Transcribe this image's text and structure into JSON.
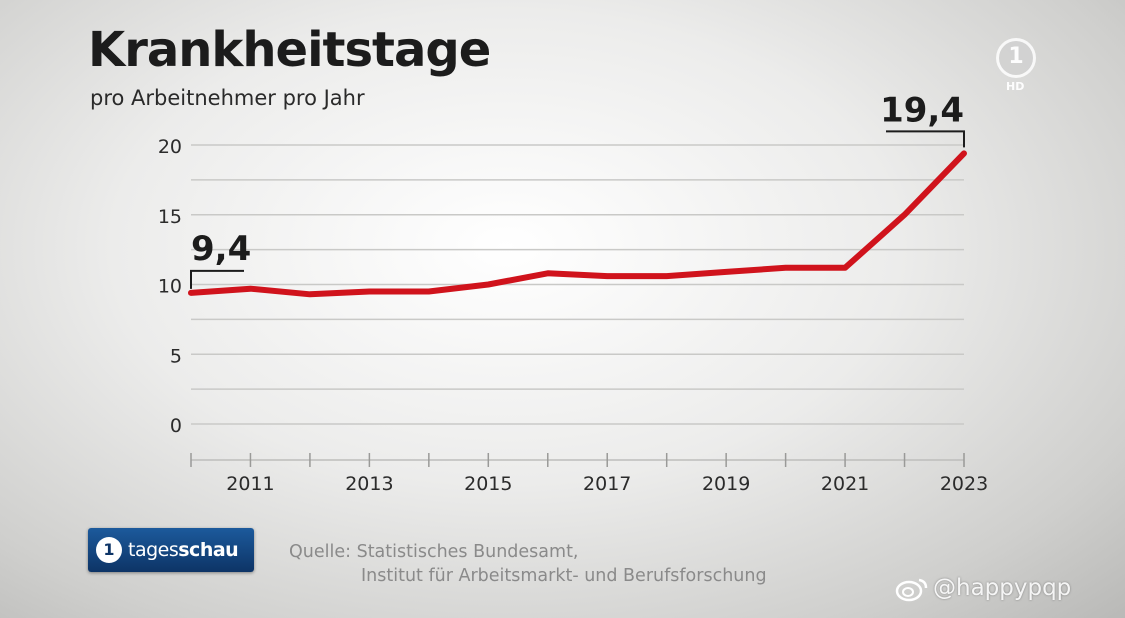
{
  "chart_data": {
    "type": "line",
    "title": "Krankheitstage",
    "subtitle": "pro Arbeitnehmer pro Jahr",
    "x": [
      2010,
      2011,
      2012,
      2013,
      2014,
      2015,
      2016,
      2017,
      2018,
      2019,
      2020,
      2021,
      2022,
      2023
    ],
    "xticks": [
      2011,
      2013,
      2015,
      2017,
      2019,
      2021,
      2023
    ],
    "yticks": [
      0,
      5,
      10,
      15,
      20
    ],
    "ylim": [
      0,
      20
    ],
    "series": [
      {
        "values": [
          9.4,
          9.7,
          9.3,
          9.5,
          9.5,
          10.0,
          10.8,
          10.6,
          10.6,
          10.9,
          11.2,
          11.2,
          15.0,
          19.4
        ]
      }
    ],
    "annotations": [
      {
        "x": 2010,
        "label": "9,4"
      },
      {
        "x": 2023,
        "label": "19,4"
      }
    ],
    "line_color": "#d0131c",
    "grid": true
  },
  "logo": {
    "channel": "1",
    "hd": "HD"
  },
  "brand": {
    "icon": "1",
    "text_light": "tages",
    "text_bold": "schau"
  },
  "source": {
    "line1": "Quelle: Statistisches Bundesamt,",
    "line2": "Institut für Arbeitsmarkt- und Berufsforschung"
  },
  "watermark": {
    "handle": "@happypqp",
    "icon": "weibo-icon"
  }
}
